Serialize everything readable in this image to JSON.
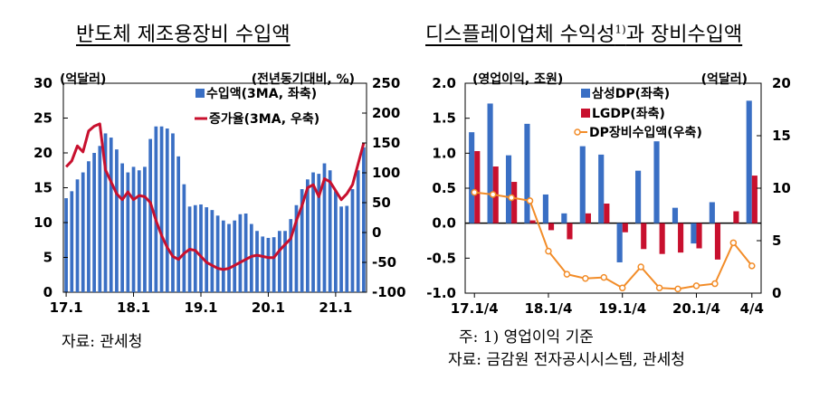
{
  "left_chart": {
    "title": "반도체 제조용장비 수입액",
    "left_unit": "(억달러)",
    "right_unit": "(전년동기대비, %)",
    "source": "자료: 관세청"
  },
  "right_chart": {
    "title": "디스플레이업체 수익성",
    "title_sup": "1)",
    "title_tail": "과 장비수입액",
    "left_unit": "(영업이익, 조원)",
    "right_unit": "(억달러)",
    "note": "주: 1) 영업이익 기준",
    "source": "자료: 금감원 전자공시시스템, 관세청"
  },
  "chart_data": [
    {
      "type": "bar+line",
      "title": "반도체 제조용장비 수입액",
      "xticks": [
        "17.1",
        "18.1",
        "19.1",
        "20.1",
        "21.1"
      ],
      "ylim_left": [
        0,
        30
      ],
      "yticks_left": [
        "0",
        "5",
        "10",
        "15",
        "20",
        "25",
        "30"
      ],
      "ylim_right": [
        -100,
        250
      ],
      "yticks_right": [
        "-100",
        "-50",
        "0",
        "50",
        "100",
        "150",
        "200",
        "250"
      ],
      "grid": false,
      "legend_position": "top-right",
      "colors": {
        "bar": "#3a6fc4",
        "line": "#c8102e"
      },
      "series": [
        {
          "name": "수입액(3MA, 좌축)",
          "axis": "left",
          "kind": "bar",
          "values": [
            13.5,
            14.5,
            16.2,
            17.2,
            18.8,
            20.0,
            21.0,
            22.8,
            22.2,
            20.5,
            18.5,
            17.2,
            18.0,
            17.5,
            18.0,
            22.0,
            23.8,
            23.8,
            23.5,
            22.8,
            19.5,
            15.5,
            12.3,
            12.5,
            12.6,
            12.2,
            11.8,
            11.0,
            10.3,
            9.8,
            10.3,
            11.2,
            11.3,
            9.8,
            8.8,
            8.0,
            7.8,
            7.9,
            8.8,
            8.8,
            10.5,
            12.5,
            14.8,
            16.2,
            17.2,
            17.0,
            18.5,
            17.5,
            14.5,
            12.3,
            12.4,
            14.8,
            17.5,
            20.8
          ]
        },
        {
          "name": "증가율(3MA, 우축)",
          "axis": "right",
          "kind": "line",
          "values": [
            110,
            120,
            145,
            135,
            170,
            178,
            182,
            105,
            85,
            65,
            55,
            68,
            55,
            62,
            60,
            50,
            20,
            -5,
            -25,
            -40,
            -45,
            -35,
            -28,
            -30,
            -40,
            -50,
            -55,
            -60,
            -62,
            -60,
            -55,
            -50,
            -45,
            -40,
            -38,
            -40,
            -42,
            -42,
            -30,
            -20,
            -10,
            20,
            45,
            75,
            80,
            60,
            90,
            85,
            70,
            55,
            65,
            80,
            115,
            150
          ]
        }
      ]
    },
    {
      "type": "bar+line",
      "title": "디스플레이업체 수익성1)과 장비수입액",
      "xticks": [
        "17.1/4",
        "18.1/4",
        "19.1/4",
        "20.1/4",
        "4/4"
      ],
      "ylim_left": [
        -1.0,
        2.0
      ],
      "yticks_left": [
        "-1.0",
        "-0.5",
        "0.0",
        "0.5",
        "1.0",
        "1.5",
        "2.0"
      ],
      "ylim_right": [
        0,
        20
      ],
      "yticks_right": [
        "0",
        "5",
        "10",
        "15",
        "20"
      ],
      "grid": false,
      "legend_position": "top-right",
      "colors": {
        "samsung": "#3a6fc4",
        "lg": "#c8102e",
        "line": "#f28c28"
      },
      "categories": [
        "17.1/4",
        "17.2/4",
        "17.3/4",
        "17.4/4",
        "18.1/4",
        "18.2/4",
        "18.3/4",
        "18.4/4",
        "19.1/4",
        "19.2/4",
        "19.3/4",
        "19.4/4",
        "20.1/4",
        "20.2/4",
        "20.3/4",
        "20.4/4"
      ],
      "series": [
        {
          "name": "삼성DP(좌축)",
          "axis": "left",
          "kind": "bar",
          "values": [
            1.3,
            1.71,
            0.97,
            1.42,
            0.41,
            0.14,
            1.1,
            0.98,
            -0.56,
            0.75,
            1.17,
            0.22,
            -0.29,
            0.3,
            0.0,
            1.75
          ]
        },
        {
          "name": "LGDP(좌축)",
          "axis": "left",
          "kind": "bar",
          "values": [
            1.03,
            0.81,
            0.59,
            0.04,
            -0.1,
            -0.23,
            0.14,
            0.28,
            -0.13,
            -0.37,
            -0.44,
            -0.42,
            -0.36,
            -0.52,
            0.17,
            0.68
          ]
        },
        {
          "name": "DP장비수입액(우축)",
          "axis": "right",
          "kind": "line",
          "values": [
            9.6,
            9.4,
            9.1,
            8.8,
            4.0,
            1.8,
            1.4,
            1.5,
            0.5,
            2.5,
            0.5,
            0.4,
            0.7,
            0.9,
            4.8,
            2.6
          ]
        }
      ]
    }
  ]
}
